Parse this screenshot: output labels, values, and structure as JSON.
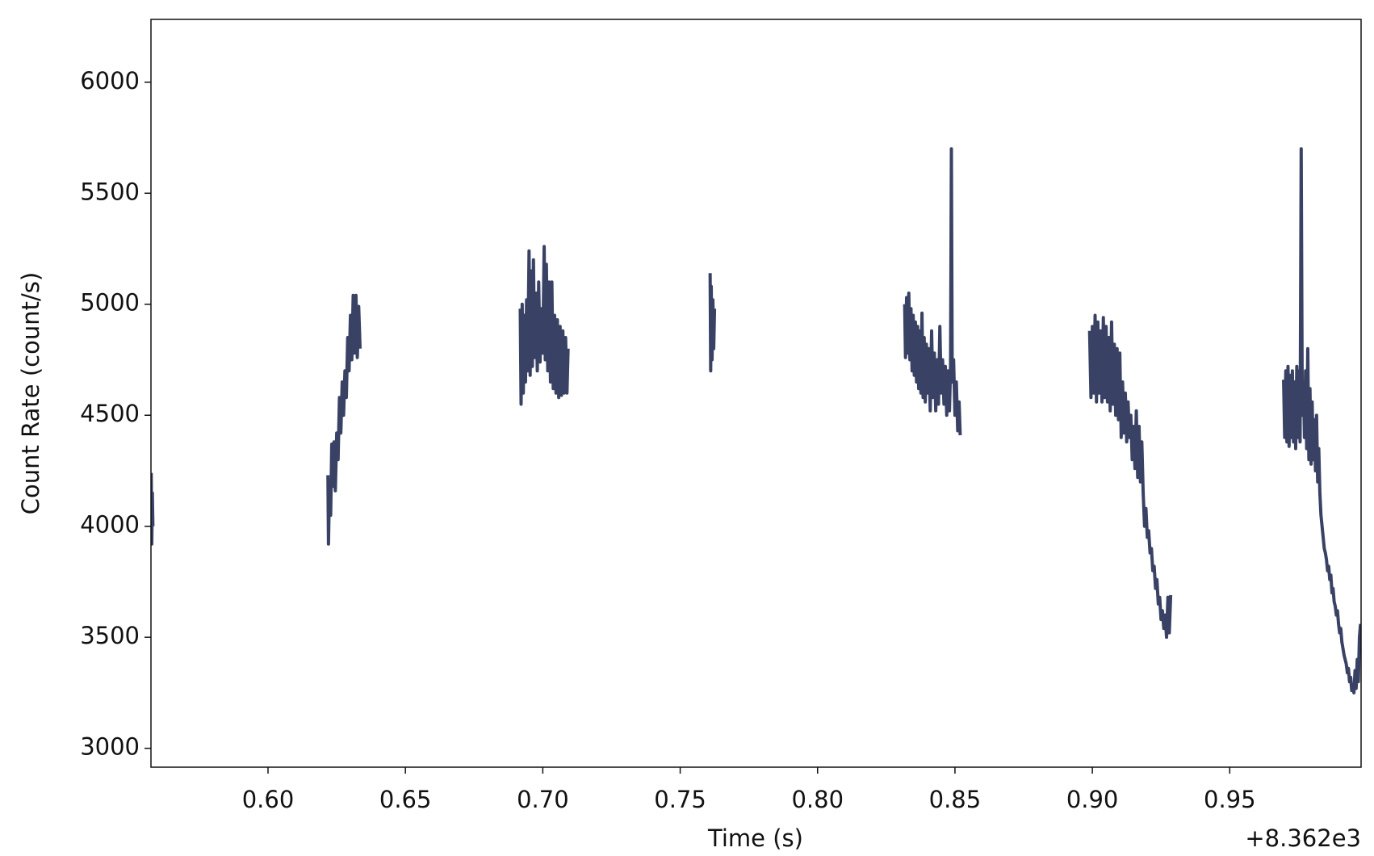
{
  "chart_data": {
    "type": "line",
    "x_label": "Time (s)",
    "y_label": "Count Rate (count/s)",
    "x_offset_label": "+8.362e3",
    "xlim": [
      8362.5574,
      8362.9978
    ],
    "ylim": [
      2915,
      6283
    ],
    "xticks": [
      {
        "value": 8362.6,
        "label": "0.60"
      },
      {
        "value": 8362.65,
        "label": "0.65"
      },
      {
        "value": 8362.7,
        "label": "0.70"
      },
      {
        "value": 8362.75,
        "label": "0.75"
      },
      {
        "value": 8362.8,
        "label": "0.80"
      },
      {
        "value": 8362.85,
        "label": "0.85"
      },
      {
        "value": 8362.9,
        "label": "0.90"
      },
      {
        "value": 8362.95,
        "label": "0.95"
      }
    ],
    "yticks": [
      3000,
      3500,
      4000,
      4500,
      5000,
      5500,
      6000
    ],
    "color": "#394264",
    "x": [
      8362.5575,
      8362.5577,
      8362.5579,
      8362.5581,
      8362.59,
      8362.6218,
      8362.622,
      8362.6224,
      8362.6228,
      8362.6232,
      8362.6236,
      8362.624,
      8362.6245,
      8362.625,
      8362.6255,
      8362.626,
      8362.6265,
      8362.627,
      8362.6275,
      8362.628,
      8362.6285,
      8362.629,
      8362.6295,
      8362.63,
      8362.6305,
      8362.631,
      8362.6315,
      8362.632,
      8362.6325,
      8362.633,
      8362.6335,
      8362.66,
      8362.6918,
      8362.6921,
      8362.6925,
      8362.6929,
      8362.6933,
      8362.6937,
      8362.6941,
      8362.6945,
      8362.695,
      8362.6954,
      8362.6958,
      8362.6962,
      8362.6966,
      8362.697,
      8362.6975,
      8362.698,
      8362.6985,
      8362.699,
      8362.6995,
      8362.7,
      8362.7005,
      8362.7009,
      8362.7013,
      8362.7018,
      8362.7023,
      8362.7028,
      8362.7033,
      8362.7038,
      8362.7043,
      8362.7048,
      8362.7053,
      8362.7058,
      8362.7063,
      8362.7068,
      8362.7073,
      8362.7078,
      8362.7083,
      8362.7088,
      8362.7092,
      8362.73,
      8362.7609,
      8362.7611,
      8362.7613,
      8362.7616,
      8362.7619,
      8362.7622,
      8362.7625,
      8362.8,
      8362.8317,
      8362.832,
      8362.8324,
      8362.8328,
      8362.8332,
      8362.8336,
      8362.834,
      8362.8344,
      8362.8348,
      8362.8352,
      8362.8356,
      8362.836,
      8362.8364,
      8362.8368,
      8362.8372,
      8362.8376,
      8362.838,
      8362.8384,
      8362.8388,
      8362.8392,
      8362.8396,
      8362.84,
      8362.8405,
      8362.841,
      8362.8415,
      8362.842,
      8362.8425,
      8362.843,
      8362.8435,
      8362.844,
      8362.8445,
      8362.845,
      8362.8455,
      8362.846,
      8362.8465,
      8362.847,
      8362.8475,
      8362.848,
      8362.8484,
      8362.8487,
      8362.849,
      8362.8495,
      8362.85,
      8362.8505,
      8362.851,
      8362.8515,
      8362.8519,
      8362.87,
      8362.899,
      8362.8995,
      8362.9,
      8362.9005,
      8362.901,
      8362.9015,
      8362.902,
      8362.9025,
      8362.903,
      8362.9035,
      8362.904,
      8362.9045,
      8362.905,
      8362.9055,
      8362.906,
      8362.9065,
      8362.907,
      8362.9075,
      8362.908,
      8362.9085,
      8362.909,
      8362.9095,
      8362.91,
      8362.9105,
      8362.911,
      8362.9115,
      8362.912,
      8362.9125,
      8362.913,
      8362.9135,
      8362.914,
      8362.9145,
      8362.915,
      8362.9155,
      8362.916,
      8362.9165,
      8362.917,
      8362.9175,
      8362.918,
      8362.9185,
      8362.919,
      8362.9195,
      8362.92,
      8362.9205,
      8362.921,
      8362.9215,
      8362.922,
      8362.9225,
      8362.923,
      8362.9235,
      8362.924,
      8362.9245,
      8362.925,
      8362.9255,
      8362.926,
      8362.9265,
      8362.927,
      8362.9275,
      8362.928,
      8362.9285,
      8362.95,
      8362.9696,
      8362.97,
      8362.9704,
      8362.9708,
      8362.9712,
      8362.9716,
      8362.972,
      8362.9724,
      8362.9728,
      8362.9732,
      8362.9736,
      8362.974,
      8362.9744,
      8362.9748,
      8362.9752,
      8362.9756,
      8362.976,
      8362.9764,
      8362.9768,
      8362.9772,
      8362.9776,
      8362.978,
      8362.9784,
      8362.9788,
      8362.9792,
      8362.9796,
      8362.98,
      8362.9804,
      8362.9808,
      8362.9812,
      8362.9816,
      8362.982,
      8362.9824,
      8362.9828,
      8362.9832,
      8362.9836,
      8362.984,
      8362.9844,
      8362.9848,
      8362.9852,
      8362.9856,
      8362.986,
      8362.9864,
      8362.9868,
      8362.9872,
      8362.9876,
      8362.988,
      8362.9884,
      8362.9888,
      8362.9892,
      8362.9896,
      8362.99,
      8362.9904,
      8362.9908,
      8362.9912,
      8362.9916,
      8362.992,
      8362.9924,
      8362.9928,
      8362.9932,
      8362.9936,
      8362.994,
      8362.9944,
      8362.9948,
      8362.9952,
      8362.9956,
      8362.996,
      8362.9964,
      8362.9968,
      8362.9972,
      8362.9976
    ],
    "values": [
      4240,
      3920,
      4150,
      4000,
      null,
      4230,
      3920,
      4200,
      4050,
      4370,
      4180,
      4380,
      4160,
      4420,
      4300,
      4580,
      4420,
      4650,
      4500,
      4700,
      4580,
      4850,
      4700,
      4950,
      4750,
      5040,
      4780,
      5040,
      4760,
      4990,
      4800,
      null,
      4980,
      4550,
      5000,
      4600,
      4950,
      4650,
      5020,
      4700,
      5240,
      4680,
      5150,
      4720,
      5200,
      4760,
      5050,
      4700,
      5100,
      4740,
      4980,
      4780,
      5260,
      4750,
      5180,
      4700,
      5100,
      4650,
      5100,
      4620,
      4950,
      4600,
      4930,
      4580,
      4900,
      4590,
      4880,
      4600,
      4850,
      4600,
      4800,
      null,
      5140,
      4700,
      5080,
      4750,
      5020,
      4800,
      4980,
      null,
      5000,
      4760,
      5030,
      4780,
      5050,
      4750,
      4980,
      4700,
      4950,
      4680,
      4920,
      4650,
      4900,
      4620,
      4880,
      4600,
      4960,
      4580,
      4850,
      4560,
      4820,
      4600,
      4800,
      4520,
      4880,
      4580,
      4780,
      4520,
      4750,
      4550,
      4900,
      4600,
      4750,
      4550,
      4720,
      4500,
      4700,
      4520,
      4720,
      5700,
      4650,
      4750,
      4500,
      4650,
      4430,
      4560,
      4410,
      null,
      4880,
      4580,
      4900,
      4600,
      4950,
      4560,
      4920,
      4600,
      4880,
      4560,
      4940,
      4580,
      4900,
      4560,
      4850,
      4520,
      4920,
      4550,
      4820,
      4500,
      4800,
      4480,
      4780,
      4400,
      4650,
      4420,
      4600,
      4380,
      4560,
      4400,
      4500,
      4300,
      4450,
      4260,
      4520,
      4220,
      4450,
      4200,
      4380,
      4150,
      4000,
      4080,
      3950,
      3980,
      3880,
      3900,
      3800,
      3820,
      3720,
      3760,
      3650,
      3680,
      3580,
      3620,
      3540,
      3600,
      3500,
      3680,
      3520,
      3690,
      null,
      4660,
      4400,
      4700,
      4380,
      4720,
      4360,
      4680,
      4400,
      4700,
      4380,
      4650,
      4350,
      4720,
      4400,
      4700,
      4380,
      5700,
      4500,
      4650,
      4400,
      4700,
      4350,
      4800,
      4300,
      4620,
      4280,
      4560,
      4300,
      4480,
      4250,
      4500,
      4200,
      4350,
      4150,
      4050,
      4000,
      3950,
      3900,
      3880,
      3850,
      3800,
      3820,
      3760,
      3780,
      3700,
      3720,
      3660,
      3640,
      3600,
      3620,
      3560,
      3520,
      3540,
      3480,
      3450,
      3420,
      3400,
      3380,
      3340,
      3360,
      3300,
      3320,
      3260,
      3280,
      3250,
      3350,
      3270,
      3400,
      3300,
      3500,
      3560
    ]
  }
}
